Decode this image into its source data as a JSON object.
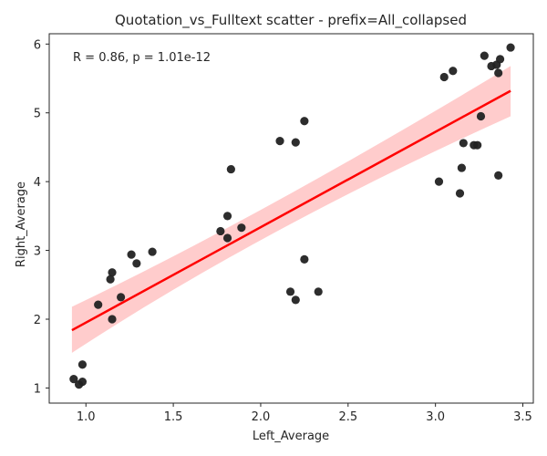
{
  "chart_data": {
    "type": "scatter",
    "title": "Quotation_vs_Fulltext scatter - prefix=All_collapsed",
    "xlabel": "Left_Average",
    "ylabel": "Right_Average",
    "annotation": "R = 0.86, p = 1.01e-12",
    "xlim": [
      0.79,
      3.56
    ],
    "ylim": [
      0.78,
      6.15
    ],
    "xticks": [
      1.0,
      1.5,
      2.0,
      2.5,
      3.0,
      3.5
    ],
    "xtick_labels": [
      "1.0",
      "1.5",
      "2.0",
      "2.5",
      "3.0",
      "3.5"
    ],
    "yticks": [
      1,
      2,
      3,
      4,
      5,
      6
    ],
    "ytick_labels": [
      "1",
      "2",
      "3",
      "4",
      "5",
      "6"
    ],
    "grid": false,
    "legend": "none",
    "points": [
      {
        "x": 0.93,
        "y": 1.13
      },
      {
        "x": 0.96,
        "y": 1.05
      },
      {
        "x": 0.98,
        "y": 1.09
      },
      {
        "x": 0.98,
        "y": 1.34
      },
      {
        "x": 1.07,
        "y": 2.21
      },
      {
        "x": 1.14,
        "y": 2.58
      },
      {
        "x": 1.15,
        "y": 2.68
      },
      {
        "x": 1.15,
        "y": 2.0
      },
      {
        "x": 1.2,
        "y": 2.32
      },
      {
        "x": 1.26,
        "y": 2.94
      },
      {
        "x": 1.29,
        "y": 2.81
      },
      {
        "x": 1.38,
        "y": 2.98
      },
      {
        "x": 1.77,
        "y": 3.28
      },
      {
        "x": 1.81,
        "y": 3.18
      },
      {
        "x": 1.81,
        "y": 3.5
      },
      {
        "x": 1.83,
        "y": 4.18
      },
      {
        "x": 1.89,
        "y": 3.33
      },
      {
        "x": 2.11,
        "y": 4.59
      },
      {
        "x": 2.17,
        "y": 2.4
      },
      {
        "x": 2.2,
        "y": 4.57
      },
      {
        "x": 2.2,
        "y": 2.28
      },
      {
        "x": 2.25,
        "y": 4.88
      },
      {
        "x": 2.25,
        "y": 2.87
      },
      {
        "x": 2.33,
        "y": 2.4
      },
      {
        "x": 3.02,
        "y": 4.0
      },
      {
        "x": 3.05,
        "y": 5.52
      },
      {
        "x": 3.1,
        "y": 5.61
      },
      {
        "x": 3.14,
        "y": 3.83
      },
      {
        "x": 3.15,
        "y": 4.2
      },
      {
        "x": 3.16,
        "y": 4.56
      },
      {
        "x": 3.22,
        "y": 4.53
      },
      {
        "x": 3.24,
        "y": 4.53
      },
      {
        "x": 3.26,
        "y": 4.95
      },
      {
        "x": 3.28,
        "y": 5.83
      },
      {
        "x": 3.32,
        "y": 5.68
      },
      {
        "x": 3.35,
        "y": 5.7
      },
      {
        "x": 3.36,
        "y": 5.58
      },
      {
        "x": 3.36,
        "y": 4.09
      },
      {
        "x": 3.37,
        "y": 5.78
      },
      {
        "x": 3.43,
        "y": 5.95
      }
    ],
    "point_color": "#222222",
    "regression": {
      "x_range": [
        0.92,
        3.43
      ],
      "y_start": 1.84,
      "y_end": 5.32,
      "ci_lower": [
        [
          0.92,
          1.51
        ],
        [
          2.0,
          3.27
        ],
        [
          3.43,
          4.95
        ]
      ],
      "ci_upper": [
        [
          0.92,
          2.18
        ],
        [
          2.0,
          3.71
        ],
        [
          3.43,
          5.68
        ]
      ],
      "line_color": "#ff0000",
      "band_color": "#ffcccc"
    }
  }
}
